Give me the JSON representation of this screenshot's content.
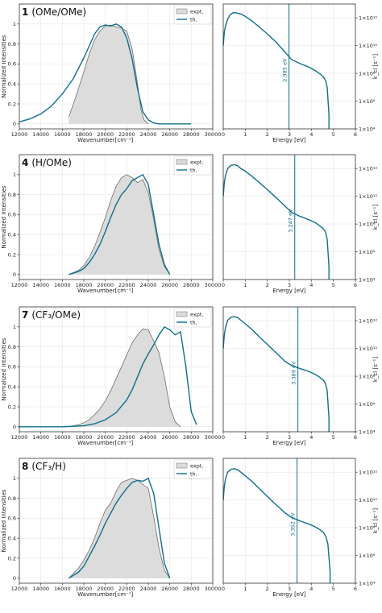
{
  "colors": {
    "expt_fill": "#dcdcdc",
    "expt_line": "#6e6e6e",
    "theory": "#0e6f8c",
    "grid": "#e6e6e6"
  },
  "legend": {
    "position": "top-right",
    "entries": [
      "expt.",
      "th."
    ]
  },
  "chart_data": [
    {
      "type": "area",
      "panel": "spectrum",
      "title_number": "1",
      "title_text": "(OMe/OMe)",
      "xlabel": "Wavenumber[cm⁻¹]",
      "ylabel": "Normalized Intensities",
      "xlim": [
        12000,
        30000
      ],
      "ylim": [
        -0.05,
        1.2
      ],
      "xticks": [
        12000,
        14000,
        16000,
        18000,
        20000,
        22000,
        24000,
        26000,
        28000,
        30000
      ],
      "yticks": [
        0,
        0.2,
        0.4,
        0.6,
        0.8,
        1
      ],
      "grid": true,
      "legend": "top-right",
      "series": [
        {
          "name": "expt.",
          "style": "filled",
          "x": [
            16600,
            17000,
            17500,
            18000,
            18500,
            19000,
            19500,
            20000,
            20500,
            21000,
            21500,
            22000,
            22500,
            23000,
            23300,
            23600,
            24000
          ],
          "y": [
            0.07,
            0.19,
            0.35,
            0.52,
            0.7,
            0.84,
            0.93,
            0.98,
            0.99,
            0.97,
            0.96,
            0.93,
            0.75,
            0.4,
            0.15,
            0.04,
            0.0
          ]
        },
        {
          "name": "th.",
          "style": "line",
          "x": [
            12000,
            13000,
            14000,
            15000,
            16000,
            17000,
            18000,
            18500,
            19000,
            19500,
            20000,
            20500,
            21000,
            21500,
            22000,
            22500,
            23000,
            23500,
            24000,
            24500,
            25000,
            26000,
            28000
          ],
          "y": [
            0.02,
            0.05,
            0.1,
            0.18,
            0.3,
            0.45,
            0.66,
            0.78,
            0.9,
            0.97,
            0.99,
            0.98,
            1.0,
            0.97,
            0.86,
            0.65,
            0.35,
            0.12,
            0.04,
            0.01,
            0.0,
            0.0,
            0.0
          ]
        }
      ]
    },
    {
      "type": "line",
      "panel": "rate",
      "xlabel": "Energy [eV]",
      "ylabel": "k_cl [s⁻¹]",
      "xlim": [
        0,
        6
      ],
      "ylog": true,
      "ylim": [
        10000,
        10000000000000
      ],
      "xticks": [
        0,
        1,
        2,
        3,
        4,
        5,
        6
      ],
      "yticks_labels": [
        "1×10⁴",
        "1×10⁶",
        "1×10⁸",
        "1×10¹⁰",
        "1×10¹²"
      ],
      "grid": true,
      "vline": {
        "x": 2.985,
        "label": "2.985 eV"
      },
      "series": [
        {
          "name": "",
          "x": [
            0,
            0.05,
            0.1,
            0.2,
            0.3,
            0.45,
            0.6,
            0.8,
            1.0,
            1.3,
            1.6,
            2.0,
            2.4,
            2.8,
            3.1,
            3.5,
            3.9,
            4.2,
            4.4,
            4.55,
            4.65,
            4.72,
            4.76,
            4.8,
            4.8
          ],
          "y": [
            10000000000.0,
            100000000000.0,
            250000000000.0,
            800000000000.0,
            1600000000000.0,
            2400000000000.0,
            2300000000000.0,
            1900000000000.0,
            1300000000000.0,
            600000000000.0,
            250000000000.0,
            70000000000.0,
            18000000000.0,
            3500000000.0,
            1000000000.0,
            500000000.0,
            280000000.0,
            150000000.0,
            90000000.0,
            55000000.0,
            30000000.0,
            10000000.0,
            1000000.0,
            100000.0,
            10000.0
          ]
        }
      ]
    },
    {
      "type": "area",
      "panel": "spectrum",
      "title_number": "4",
      "title_text": "(H/OMe)",
      "xlabel": "Wavenumber[cm⁻¹]",
      "ylabel": "Normalized Intensities",
      "xlim": [
        12000,
        30000
      ],
      "ylim": [
        -0.05,
        1.2
      ],
      "xticks": [
        12000,
        14000,
        16000,
        18000,
        20000,
        22000,
        24000,
        26000,
        28000,
        30000
      ],
      "yticks": [
        0,
        0.2,
        0.4,
        0.6,
        0.8,
        1
      ],
      "grid": true,
      "legend": "top-right",
      "series": [
        {
          "name": "expt.",
          "style": "filled",
          "x": [
            16600,
            17500,
            18000,
            18500,
            19000,
            19500,
            20000,
            20500,
            21000,
            21500,
            22000,
            22500,
            23000,
            23500,
            24000,
            24500,
            25000,
            25500,
            26000
          ],
          "y": [
            0.0,
            0.04,
            0.09,
            0.17,
            0.28,
            0.42,
            0.57,
            0.74,
            0.88,
            0.97,
            1.0,
            0.97,
            0.92,
            0.95,
            0.82,
            0.55,
            0.25,
            0.08,
            0.0
          ]
        },
        {
          "name": "th.",
          "style": "line",
          "x": [
            16600,
            17500,
            18000,
            18500,
            19000,
            19500,
            20000,
            20500,
            21000,
            21500,
            22000,
            22500,
            23000,
            23500,
            24000,
            24500,
            25000,
            25500,
            26000
          ],
          "y": [
            0.0,
            0.03,
            0.06,
            0.12,
            0.2,
            0.3,
            0.43,
            0.57,
            0.7,
            0.8,
            0.86,
            0.94,
            0.97,
            1.0,
            0.9,
            0.6,
            0.3,
            0.1,
            0.0
          ]
        }
      ]
    },
    {
      "type": "line",
      "panel": "rate",
      "xlabel": "Energy [eV]",
      "ylabel": "k_cl [s⁻¹]",
      "xlim": [
        0,
        6
      ],
      "ylog": true,
      "ylim": [
        10000,
        10000000000000
      ],
      "xticks": [
        0,
        1,
        2,
        3,
        4,
        5,
        6
      ],
      "yticks_labels": [
        "1×10⁴",
        "1×10⁶",
        "1×10⁸",
        "1×10¹⁰",
        "1×10¹²"
      ],
      "grid": true,
      "vline": {
        "x": 3.247,
        "label": "3.247 eV"
      },
      "series": [
        {
          "name": "",
          "x": [
            0,
            0.05,
            0.1,
            0.2,
            0.35,
            0.5,
            0.65,
            0.8,
            1.0,
            1.3,
            1.6,
            2.0,
            2.4,
            2.8,
            3.1,
            3.5,
            3.9,
            4.2,
            4.4,
            4.55,
            4.65,
            4.72,
            4.76,
            4.8,
            4.8
          ],
          "y": [
            10000000000.0,
            100000000000.0,
            300000000000.0,
            1000000000000.0,
            1700000000000.0,
            1900000000000.0,
            1600000000000.0,
            1000000000000.0,
            650000000000.0,
            280000000000.0,
            110000000000.0,
            30000000000.0,
            8000000000.0,
            2000000000.0,
            700000000.0,
            350000000.0,
            200000000.0,
            120000000.0,
            70000000.0,
            45000000.0,
            25000000.0,
            8000000.0,
            800000.0,
            80000.0,
            10000.0
          ]
        }
      ]
    },
    {
      "type": "area",
      "panel": "spectrum",
      "title_number": "7",
      "title_text": "(CF₃/OMe)",
      "xlabel": "Wavenumber[cm⁻¹]",
      "ylabel": "Normalized Intensities",
      "xlim": [
        12000,
        30000
      ],
      "ylim": [
        -0.05,
        1.2
      ],
      "xticks": [
        12000,
        14000,
        16000,
        18000,
        20000,
        22000,
        24000,
        26000,
        28000,
        30000
      ],
      "yticks": [
        0,
        0.2,
        0.4,
        0.6,
        0.8,
        1
      ],
      "grid": true,
      "legend": "top-right",
      "series": [
        {
          "name": "expt.",
          "style": "filled",
          "x": [
            16600,
            17500,
            18000,
            18500,
            19000,
            19500,
            20000,
            20500,
            21000,
            21500,
            22000,
            22500,
            23000,
            23500,
            24000,
            24500,
            25000,
            25500,
            26000,
            26500,
            27000
          ],
          "y": [
            0.0,
            0.02,
            0.04,
            0.07,
            0.12,
            0.18,
            0.26,
            0.36,
            0.48,
            0.6,
            0.72,
            0.84,
            0.92,
            0.98,
            0.97,
            0.86,
            0.74,
            0.5,
            0.2,
            0.05,
            0.0
          ]
        },
        {
          "name": "th.",
          "style": "line",
          "x": [
            12000,
            16000,
            18000,
            19000,
            20000,
            21000,
            22000,
            22500,
            23000,
            23500,
            24000,
            24500,
            25000,
            25500,
            26000,
            26500,
            27000,
            27500,
            28000,
            28500
          ],
          "y": [
            0.0,
            0.0,
            0.01,
            0.03,
            0.07,
            0.14,
            0.27,
            0.37,
            0.5,
            0.63,
            0.73,
            0.82,
            0.92,
            1.0,
            0.97,
            0.92,
            0.95,
            0.6,
            0.15,
            0.02
          ]
        }
      ]
    },
    {
      "type": "line",
      "panel": "rate",
      "xlabel": "Energy [eV]",
      "ylabel": "k_cl [s⁻¹]",
      "xlim": [
        0,
        6
      ],
      "ylog": true,
      "ylim": [
        10000,
        10000000000000
      ],
      "xticks": [
        0,
        1,
        2,
        3,
        4,
        5,
        6
      ],
      "yticks_labels": [
        "1×10⁴",
        "1×10⁶",
        "1×10⁸",
        "1×10¹⁰",
        "1×10¹²"
      ],
      "grid": true,
      "vline": {
        "x": 3.389,
        "label": "3.389 eV"
      },
      "series": [
        {
          "name": "",
          "x": [
            0,
            0.05,
            0.1,
            0.2,
            0.35,
            0.5,
            0.65,
            0.8,
            1.0,
            1.3,
            1.6,
            2.0,
            2.4,
            2.8,
            3.1,
            3.5,
            3.9,
            4.2,
            4.4,
            4.55,
            4.65,
            4.72,
            4.76,
            4.8,
            4.8
          ],
          "y": [
            10000000000.0,
            100000000000.0,
            300000000000.0,
            1100000000000.0,
            1800000000000.0,
            2000000000000.0,
            1700000000000.0,
            1100000000000.0,
            600000000000.0,
            240000000000.0,
            80000000000.0,
            20000000000.0,
            5000000000.0,
            1200000000.0,
            600000000.0,
            350000000.0,
            220000000.0,
            130000000.0,
            80000000.0,
            50000000.0,
            28000000.0,
            9000000.0,
            900000.0,
            90000.0,
            10000.0
          ]
        }
      ]
    },
    {
      "type": "area",
      "panel": "spectrum",
      "title_number": "8",
      "title_text": "(CF₃/H)",
      "xlabel": "Wavenumber[cm⁻¹]",
      "ylabel": "Normalized Intensities",
      "xlim": [
        12000,
        30000
      ],
      "ylim": [
        -0.05,
        1.2
      ],
      "xticks": [
        12000,
        14000,
        16000,
        18000,
        20000,
        22000,
        24000,
        26000,
        28000,
        30000
      ],
      "yticks": [
        0,
        0.2,
        0.4,
        0.6,
        0.8,
        1
      ],
      "grid": true,
      "legend": "top-right",
      "series": [
        {
          "name": "expt.",
          "style": "filled",
          "x": [
            16600,
            17500,
            18000,
            18500,
            19000,
            19500,
            20000,
            20500,
            21000,
            21500,
            22000,
            22500,
            23000,
            23500,
            24000,
            24500,
            25000,
            25500,
            26000
          ],
          "y": [
            0.0,
            0.1,
            0.18,
            0.28,
            0.4,
            0.55,
            0.68,
            0.75,
            0.87,
            0.96,
            0.98,
            1.0,
            0.98,
            0.94,
            0.9,
            0.62,
            0.3,
            0.08,
            0.0
          ]
        },
        {
          "name": "th.",
          "style": "line",
          "x": [
            16600,
            17500,
            18000,
            18500,
            19000,
            19500,
            20000,
            20500,
            21000,
            21500,
            22000,
            22500,
            23000,
            23500,
            24000,
            24500,
            25000,
            25500,
            26000
          ],
          "y": [
            0.0,
            0.06,
            0.12,
            0.22,
            0.32,
            0.43,
            0.55,
            0.65,
            0.75,
            0.83,
            0.9,
            0.96,
            0.98,
            0.97,
            1.0,
            0.85,
            0.5,
            0.15,
            0.0
          ]
        }
      ]
    },
    {
      "type": "line",
      "panel": "rate",
      "xlabel": "Energy [eV]",
      "ylabel": "k_cl [s⁻¹]",
      "xlim": [
        0,
        6
      ],
      "ylog": true,
      "ylim": [
        10000,
        10000000000000
      ],
      "xticks": [
        0,
        1,
        2,
        3,
        4,
        5,
        6
      ],
      "yticks_labels": [
        "1×10⁴",
        "1×10⁶",
        "1×10⁸",
        "1×10¹⁰",
        "1×10¹²"
      ],
      "grid": true,
      "vline": {
        "x": 3.352,
        "label": "3.352 eV"
      },
      "series": [
        {
          "name": "",
          "x": [
            0,
            0.05,
            0.1,
            0.2,
            0.35,
            0.5,
            0.65,
            0.8,
            1.0,
            1.3,
            1.6,
            2.0,
            2.4,
            2.8,
            3.1,
            3.5,
            3.9,
            4.2,
            4.4,
            4.55,
            4.65,
            4.75,
            4.8,
            4.85,
            4.85
          ],
          "y": [
            10000000000.0,
            100000000000.0,
            300000000000.0,
            1000000000000.0,
            1600000000000.0,
            1800000000000.0,
            1500000000000.0,
            1000000000000.0,
            550000000000.0,
            220000000000.0,
            75000000000.0,
            18000000000.0,
            4500000000.0,
            1200000000.0,
            550000000.0,
            300000000.0,
            180000000.0,
            110000000.0,
            70000000.0,
            45000000.0,
            25000000.0,
            7000000.0,
            700000.0,
            70000.0,
            10000.0
          ]
        }
      ]
    }
  ]
}
